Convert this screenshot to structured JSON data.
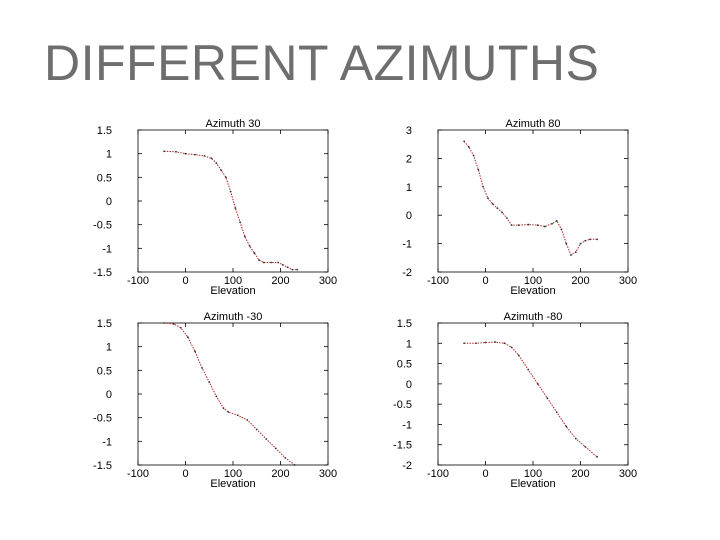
{
  "slide": {
    "title": "DIFFERENT AZIMUTHS"
  },
  "colors": {
    "series": "#b22222",
    "axis": "#000000",
    "title": "#6e6e6e"
  },
  "chart_data": [
    {
      "type": "line",
      "title": "Azimuth 30",
      "xlabel": "Elevation",
      "ylabel": "",
      "xlim": [
        -100,
        300
      ],
      "ylim": [
        -1.5,
        1.5
      ],
      "x_ticks": [
        "-100",
        "0",
        "100",
        "200",
        "300"
      ],
      "y_ticks": [
        "1.5",
        "1",
        "0.5",
        "0",
        "-0.5",
        "-1",
        "-1.5"
      ],
      "series": [
        {
          "x": [
            -45,
            -20,
            0,
            20,
            40,
            55,
            65,
            75,
            85,
            95,
            105,
            115,
            125,
            135,
            145,
            155,
            165,
            180,
            195,
            205,
            215,
            225,
            235
          ],
          "y": [
            1.05,
            1.04,
            1.0,
            0.98,
            0.95,
            0.9,
            0.8,
            0.65,
            0.5,
            0.2,
            -0.15,
            -0.45,
            -0.75,
            -0.95,
            -1.1,
            -1.25,
            -1.3,
            -1.3,
            -1.3,
            -1.35,
            -1.4,
            -1.45,
            -1.45
          ]
        }
      ]
    },
    {
      "type": "line",
      "title": "Azimuth 80",
      "xlabel": "Elevation",
      "ylabel": "",
      "xlim": [
        -100,
        300
      ],
      "ylim": [
        -2,
        3
      ],
      "x_ticks": [
        "-100",
        "0",
        "100",
        "200",
        "300"
      ],
      "y_ticks": [
        "3",
        "2",
        "1",
        "0",
        "-1",
        "-2"
      ],
      "series": [
        {
          "x": [
            -45,
            -35,
            -25,
            -15,
            -5,
            5,
            15,
            25,
            35,
            45,
            55,
            70,
            90,
            110,
            125,
            140,
            150,
            160,
            170,
            180,
            190,
            200,
            210,
            220,
            235
          ],
          "y": [
            2.6,
            2.4,
            2.1,
            1.6,
            1.0,
            0.6,
            0.4,
            0.25,
            0.1,
            -0.1,
            -0.35,
            -0.35,
            -0.33,
            -0.35,
            -0.4,
            -0.3,
            -0.2,
            -0.5,
            -1.0,
            -1.4,
            -1.3,
            -1.0,
            -0.9,
            -0.85,
            -0.85
          ]
        }
      ]
    },
    {
      "type": "line",
      "title": "Azimuth -30",
      "xlabel": "Elevation",
      "ylabel": "",
      "xlim": [
        -100,
        300
      ],
      "ylim": [
        -1.5,
        1.5
      ],
      "x_ticks": [
        "-100",
        "0",
        "100",
        "200",
        "300"
      ],
      "y_ticks": [
        "1.5",
        "1",
        "0.5",
        "0",
        "-0.5",
        "-1",
        "-1.5"
      ],
      "series": [
        {
          "x": [
            -45,
            -25,
            -10,
            5,
            20,
            35,
            50,
            65,
            80,
            90,
            110,
            130,
            150,
            170,
            190,
            210,
            230
          ],
          "y": [
            1.5,
            1.48,
            1.4,
            1.2,
            0.9,
            0.55,
            0.25,
            -0.05,
            -0.3,
            -0.38,
            -0.45,
            -0.55,
            -0.75,
            -0.95,
            -1.15,
            -1.35,
            -1.5
          ]
        }
      ]
    },
    {
      "type": "line",
      "title": "Azimuth -80",
      "xlabel": "Elevation",
      "ylabel": "",
      "xlim": [
        -100,
        300
      ],
      "ylim": [
        -2,
        1.5
      ],
      "x_ticks": [
        "-100",
        "0",
        "100",
        "200",
        "300"
      ],
      "y_ticks": [
        "1.5",
        "1",
        "0.5",
        "0",
        "-0.5",
        "-1",
        "-1.5",
        "-2"
      ],
      "series": [
        {
          "x": [
            -45,
            -20,
            0,
            20,
            40,
            55,
            70,
            90,
            110,
            130,
            150,
            170,
            190,
            210,
            235
          ],
          "y": [
            1.0,
            1.0,
            1.02,
            1.03,
            1.0,
            0.9,
            0.7,
            0.35,
            0.0,
            -0.35,
            -0.7,
            -1.05,
            -1.35,
            -1.55,
            -1.8
          ]
        }
      ]
    }
  ]
}
